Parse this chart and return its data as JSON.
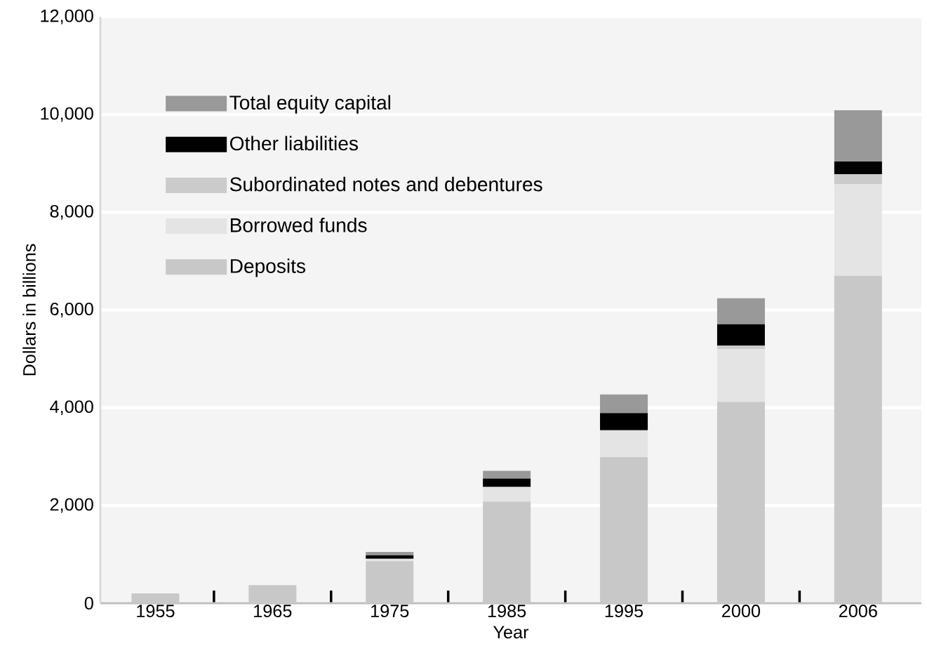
{
  "chart_data": {
    "type": "bar",
    "stacked": true,
    "xlabel": "Year",
    "ylabel": "Dollars in billions",
    "categories": [
      "1955",
      "1965",
      "1975",
      "1985",
      "1995",
      "2000",
      "2006"
    ],
    "series": [
      {
        "name": "Deposits",
        "color": "#c8c8c8",
        "values": [
          200,
          370,
          860,
          2080,
          2990,
          4120,
          6700
        ]
      },
      {
        "name": "Borrowed funds",
        "color": "#e4e4e4",
        "values": [
          0,
          0,
          50,
          300,
          550,
          1080,
          1880
        ]
      },
      {
        "name": "Subordinated notes and debentures",
        "color": "#cbcbcb",
        "values": [
          0,
          0,
          null,
          0,
          null,
          70,
          200
        ]
      },
      {
        "name": "Other liabilities",
        "color": "#000000",
        "values": [
          0,
          0,
          70,
          170,
          350,
          440,
          260
        ]
      },
      {
        "name": "Total equity capital",
        "color": "#999999",
        "values": [
          0,
          0,
          70,
          160,
          380,
          530,
          1050
        ]
      }
    ],
    "ylim": [
      0,
      12000
    ],
    "yticks": [
      0,
      {
        "value": 2000,
        "label": "2,000"
      },
      {
        "value": 4000,
        "label": "4,000"
      },
      {
        "value": 6000,
        "label": "6,000"
      },
      {
        "value": 8000,
        "label": "8,000"
      },
      {
        "value": 10000,
        "label": "10,000"
      },
      {
        "value": 12000,
        "label": "12,000"
      }
    ],
    "grid": "y",
    "legend": "top left"
  }
}
